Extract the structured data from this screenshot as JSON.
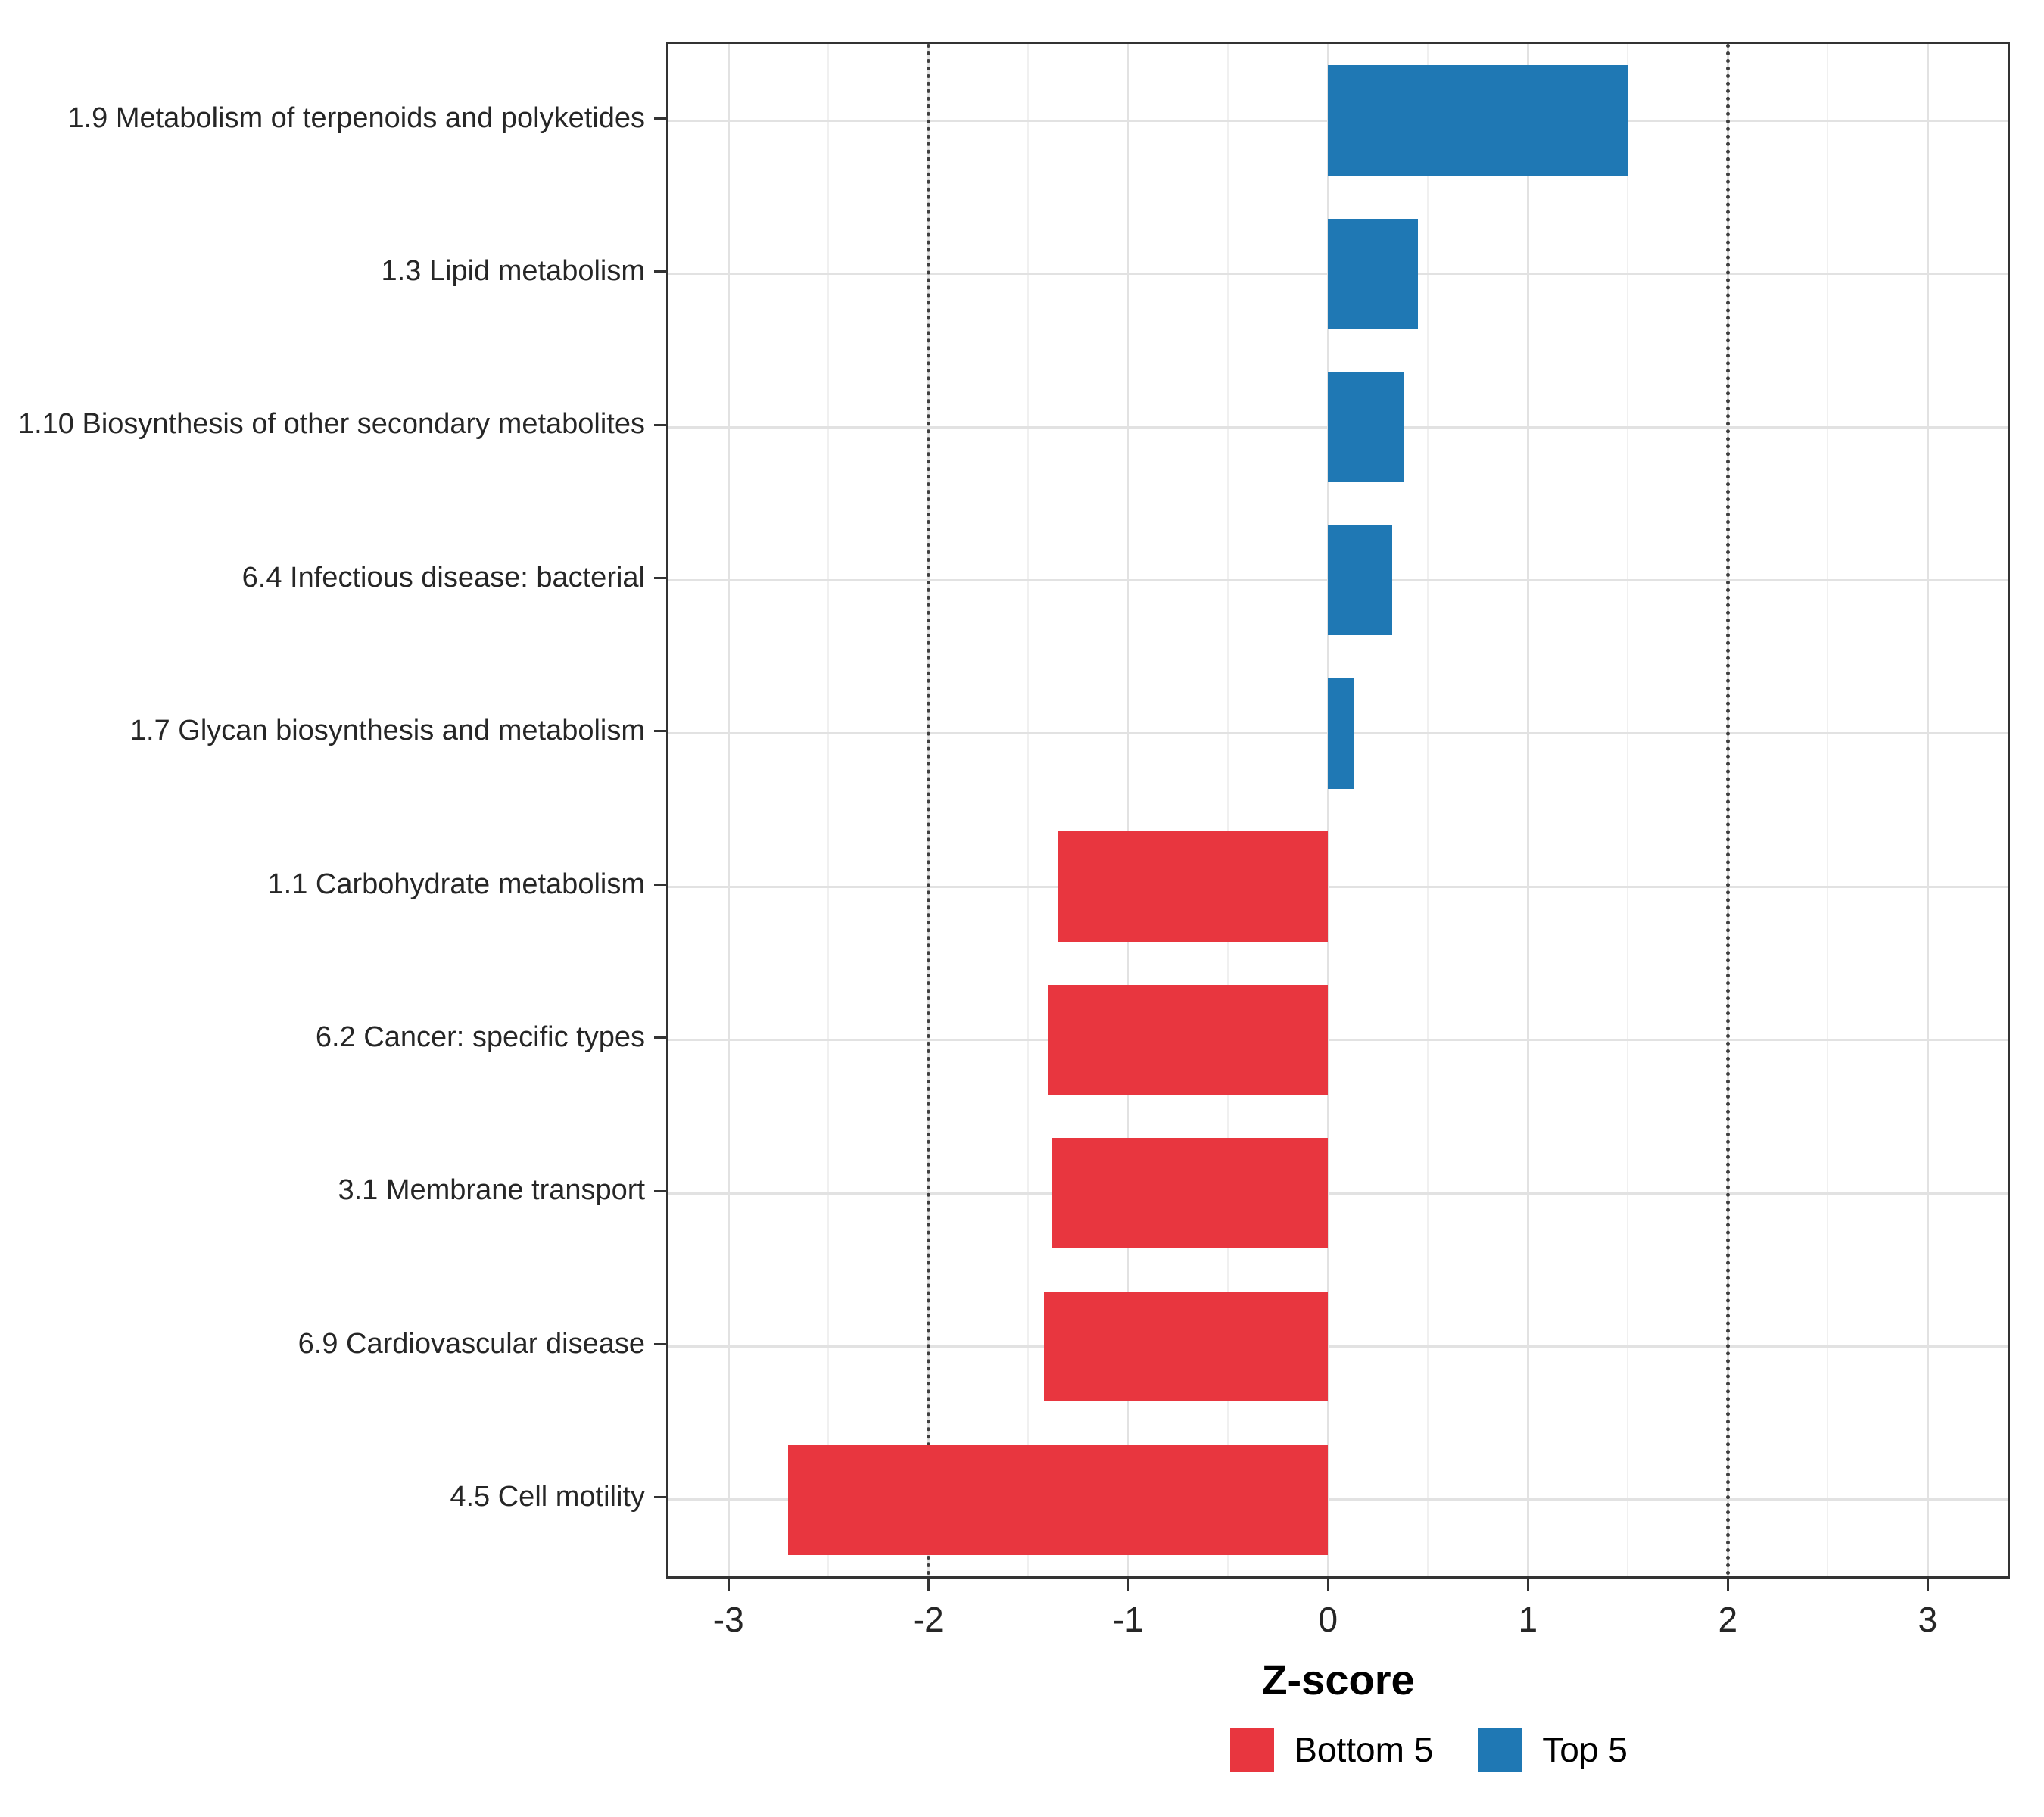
{
  "chart_data": {
    "type": "bar",
    "orientation": "horizontal",
    "title": "",
    "xlabel": "Z-score",
    "ylabel": "",
    "categories": [
      "1.9 Metabolism of terpenoids and polyketides",
      "1.3 Lipid metabolism",
      "1.10 Biosynthesis of other secondary metabolites",
      "6.4 Infectious disease: bacterial",
      "1.7 Glycan biosynthesis and metabolism",
      "1.1 Carbohydrate metabolism",
      "6.2 Cancer: specific types",
      "3.1 Membrane transport",
      "6.9 Cardiovascular disease",
      "4.5 Cell motility"
    ],
    "values": [
      1.5,
      0.45,
      0.38,
      0.32,
      0.13,
      -1.35,
      -1.4,
      -1.38,
      -1.42,
      -2.7
    ],
    "groups": [
      "Top 5",
      "Top 5",
      "Top 5",
      "Top 5",
      "Top 5",
      "Bottom 5",
      "Bottom 5",
      "Bottom 5",
      "Bottom 5",
      "Bottom 5"
    ],
    "colors": {
      "Top 5": "#1f78b4",
      "Bottom 5": "#e8363f"
    },
    "xlim": [
      -3.3,
      3.4
    ],
    "xticks": [
      -3,
      -2,
      -1,
      0,
      1,
      2,
      3
    ],
    "xticks_minor": [
      -2.5,
      -1.5,
      -0.5,
      0.5,
      1.5,
      2.5
    ],
    "reference_lines": [
      -2,
      2
    ],
    "grid": true,
    "panel_border_color": "#333333",
    "gridline_color": "#e2e2e2",
    "legend_position": "bottom",
    "legend": [
      {
        "label": "Bottom 5",
        "key": "Bottom 5"
      },
      {
        "label": "Top 5",
        "key": "Top 5"
      }
    ]
  }
}
